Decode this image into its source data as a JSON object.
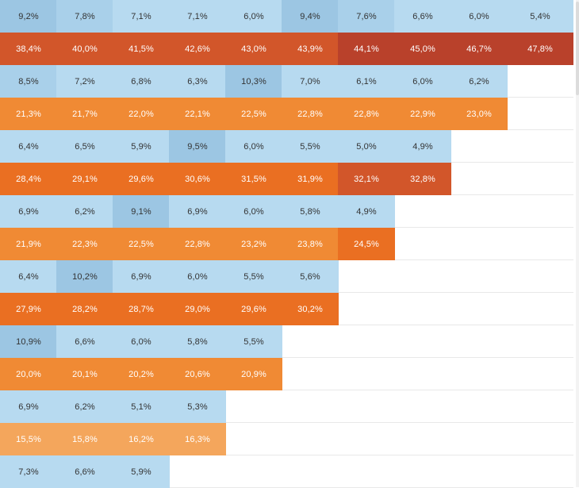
{
  "table": {
    "rows": [
      {
        "kind": "rate",
        "values": [
          "9,2%",
          "7,8%",
          "7,1%",
          "7,1%",
          "6,0%",
          "9,4%",
          "7,6%",
          "6,6%",
          "6,0%",
          "5,4%"
        ]
      },
      {
        "kind": "cumulative",
        "values": [
          "38,4%",
          "40,0%",
          "41,5%",
          "42,6%",
          "43,0%",
          "43,9%",
          "44,1%",
          "45,0%",
          "46,7%",
          "47,8%"
        ]
      },
      {
        "kind": "rate",
        "values": [
          "8,5%",
          "7,2%",
          "6,8%",
          "6,3%",
          "10,3%",
          "7,0%",
          "6,1%",
          "6,0%",
          "6,2%"
        ]
      },
      {
        "kind": "cumulative",
        "values": [
          "21,3%",
          "21,7%",
          "22,0%",
          "22,1%",
          "22,5%",
          "22,8%",
          "22,8%",
          "22,9%",
          "23,0%"
        ]
      },
      {
        "kind": "rate",
        "values": [
          "6,4%",
          "6,5%",
          "5,9%",
          "9,5%",
          "6,0%",
          "5,5%",
          "5,0%",
          "4,9%"
        ]
      },
      {
        "kind": "cumulative",
        "values": [
          "28,4%",
          "29,1%",
          "29,6%",
          "30,6%",
          "31,5%",
          "31,9%",
          "32,1%",
          "32,8%"
        ]
      },
      {
        "kind": "rate",
        "values": [
          "6,9%",
          "6,2%",
          "9,1%",
          "6,9%",
          "6,0%",
          "5,8%",
          "4,9%"
        ]
      },
      {
        "kind": "cumulative",
        "values": [
          "21,9%",
          "22,3%",
          "22,5%",
          "22,8%",
          "23,2%",
          "23,8%",
          "24,5%"
        ]
      },
      {
        "kind": "rate",
        "values": [
          "6,4%",
          "10,2%",
          "6,9%",
          "6,0%",
          "5,5%",
          "5,6%"
        ]
      },
      {
        "kind": "cumulative",
        "values": [
          "27,9%",
          "28,2%",
          "28,7%",
          "29,0%",
          "29,6%",
          "30,2%"
        ]
      },
      {
        "kind": "rate",
        "values": [
          "10,9%",
          "6,6%",
          "6,0%",
          "5,8%",
          "5,5%"
        ]
      },
      {
        "kind": "cumulative",
        "values": [
          "20,0%",
          "20,1%",
          "20,2%",
          "20,6%",
          "20,9%"
        ]
      },
      {
        "kind": "rate",
        "values": [
          "6,9%",
          "6,2%",
          "5,1%",
          "5,3%"
        ]
      },
      {
        "kind": "cumulative",
        "values": [
          "15,5%",
          "15,8%",
          "16,2%",
          "16,3%"
        ]
      },
      {
        "kind": "rate",
        "values": [
          "7,3%",
          "6,6%",
          "5,9%"
        ]
      }
    ]
  },
  "colors": {
    "rate_scale": [
      "#b7daf0",
      "#a9d0ea",
      "#9cc6e3"
    ],
    "cumulative_scale": [
      "#f4a65c",
      "#f08a34",
      "#ea6f22",
      "#d2562a",
      "#b9412b"
    ]
  }
}
